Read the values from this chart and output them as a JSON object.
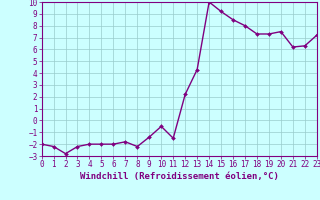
{
  "title": "",
  "xlabel": "Windchill (Refroidissement éolien,°C)",
  "ylabel": "",
  "x_values": [
    0,
    1,
    2,
    3,
    4,
    5,
    6,
    7,
    8,
    9,
    10,
    11,
    12,
    13,
    14,
    15,
    16,
    17,
    18,
    19,
    20,
    21,
    22,
    23
  ],
  "y_values": [
    -2.0,
    -2.2,
    -2.8,
    -2.2,
    -2.0,
    -2.0,
    -2.0,
    -1.8,
    -2.2,
    -1.4,
    -0.5,
    -1.5,
    2.2,
    4.3,
    10.0,
    9.2,
    8.5,
    8.0,
    7.3,
    7.3,
    7.5,
    6.2,
    6.3,
    7.2
  ],
  "line_color": "#800080",
  "marker": "D",
  "marker_size": 2.0,
  "bg_color": "#ccffff",
  "grid_color": "#99cccc",
  "axis_color": "#800080",
  "tick_color": "#800080",
  "xlim": [
    0,
    23
  ],
  "ylim": [
    -3,
    10
  ],
  "yticks": [
    -3,
    -2,
    -1,
    0,
    1,
    2,
    3,
    4,
    5,
    6,
    7,
    8,
    9,
    10
  ],
  "xticks": [
    0,
    1,
    2,
    3,
    4,
    5,
    6,
    7,
    8,
    9,
    10,
    11,
    12,
    13,
    14,
    15,
    16,
    17,
    18,
    19,
    20,
    21,
    22,
    23
  ],
  "font_family": "monospace",
  "xlabel_fontsize": 6.5,
  "tick_fontsize": 5.5,
  "line_width": 1.0
}
